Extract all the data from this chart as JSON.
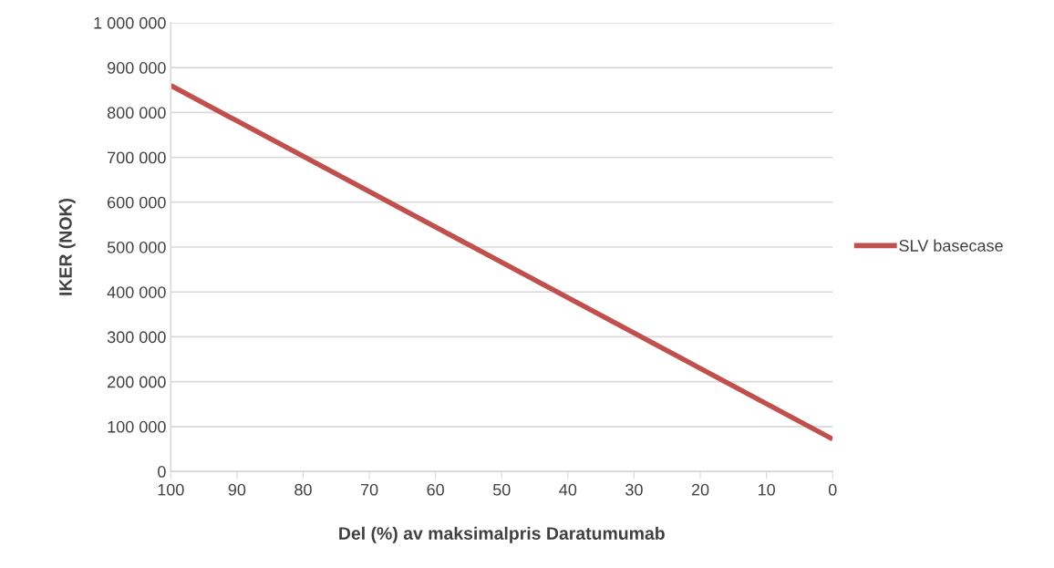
{
  "chart_data": {
    "type": "line",
    "xlabel": "Del (%) av maksimalpris Daratumumab",
    "ylabel": "IKER (NOK)",
    "x": [
      100,
      0
    ],
    "series": [
      {
        "name": "SLV basecase",
        "color": "#c0504d",
        "values": [
          860000,
          72000
        ]
      }
    ],
    "xlim": [
      100,
      0
    ],
    "xticks": [
      100,
      90,
      80,
      70,
      60,
      50,
      40,
      30,
      20,
      10,
      0
    ],
    "ylim": [
      0,
      1000000
    ],
    "yticks": [
      {
        "value": 0,
        "label": "0"
      },
      {
        "value": 100000,
        "label": "100 000"
      },
      {
        "value": 200000,
        "label": "200 000"
      },
      {
        "value": 300000,
        "label": "300 000"
      },
      {
        "value": 400000,
        "label": "400 000"
      },
      {
        "value": 500000,
        "label": "500 000"
      },
      {
        "value": 600000,
        "label": "600 000"
      },
      {
        "value": 700000,
        "label": "700 000"
      },
      {
        "value": 800000,
        "label": "800 000"
      },
      {
        "value": 900000,
        "label": "900 000"
      },
      {
        "value": 1000000,
        "label": "1 000 000"
      }
    ],
    "grid": "y",
    "legend": "right",
    "marker": "none",
    "line_style": "solid"
  }
}
